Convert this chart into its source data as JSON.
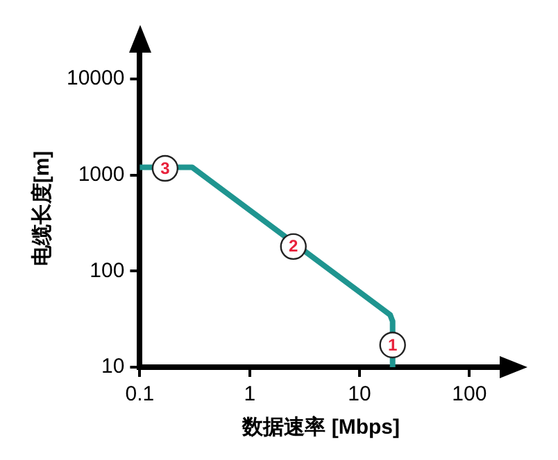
{
  "chart_data": {
    "type": "line",
    "xlabel": "数据速率 [Mbps]",
    "ylabel": "电缆长度[m]",
    "log": "xy",
    "xlim": [
      0.1,
      200
    ],
    "xticks": [
      0.1,
      1,
      10,
      100
    ],
    "ylim": [
      10,
      20000
    ],
    "yticks": [
      10,
      100,
      1000,
      10000
    ],
    "grid": false,
    "legend": false,
    "marker": "none",
    "line_style": "solid",
    "series": [
      {
        "color": "#1f9590",
        "x": [
          0.1,
          0.3,
          19,
          20,
          20
        ],
        "values": [
          1200,
          1200,
          35,
          30,
          10
        ]
      }
    ],
    "annotations": [
      {
        "text": "1",
        "x": 20,
        "y": 17
      },
      {
        "text": "2",
        "x": 2.5,
        "y": 180
      },
      {
        "text": "3",
        "x": 0.17,
        "y": 1170
      }
    ]
  }
}
